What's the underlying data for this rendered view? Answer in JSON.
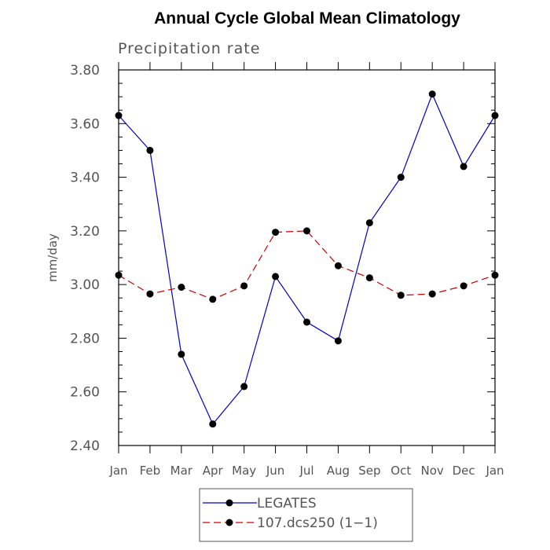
{
  "chart_data": {
    "type": "line",
    "title": "Annual Cycle Global Mean Climatology",
    "subtitle": "Precipitation rate",
    "ylabel": "mm/day",
    "categories": [
      "Jan",
      "Feb",
      "Mar",
      "Apr",
      "May",
      "Jun",
      "Jul",
      "Aug",
      "Sep",
      "Oct",
      "Nov",
      "Dec",
      "Jan"
    ],
    "yticks": [
      "2.40",
      "2.60",
      "2.80",
      "3.00",
      "3.20",
      "3.40",
      "3.60",
      "3.80"
    ],
    "ylim": [
      2.4,
      3.8
    ],
    "legend_position": "bottom",
    "series": [
      {
        "name": "LEGATES",
        "color": "#0000cc",
        "style": "solid",
        "marker": "circle",
        "values": [
          3.63,
          3.5,
          2.74,
          2.48,
          2.62,
          3.03,
          2.86,
          2.79,
          3.23,
          3.4,
          3.71,
          3.44,
          3.63
        ]
      },
      {
        "name": "107.dcs250 (1−1)",
        "color": "#cc0000",
        "style": "dashed",
        "marker": "circle",
        "values": [
          3.035,
          2.965,
          2.99,
          2.945,
          2.995,
          3.195,
          3.2,
          3.07,
          3.025,
          2.96,
          2.965,
          2.995,
          3.035
        ]
      }
    ]
  }
}
